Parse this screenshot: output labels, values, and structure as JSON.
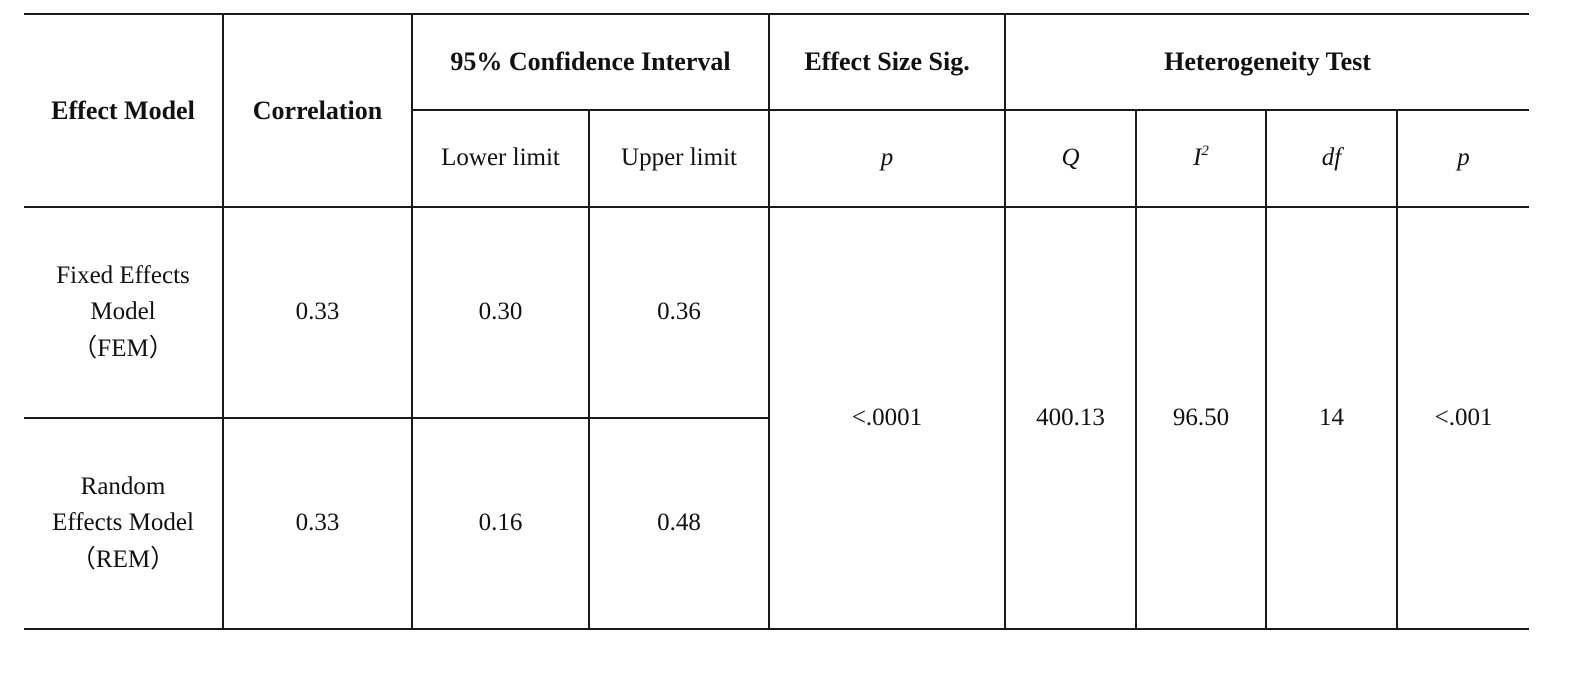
{
  "headers": {
    "effect_model": "Effect Model",
    "correlation": "Correlation",
    "confidence_interval": "95% Confidence Interval",
    "lower_limit": "Lower limit",
    "upper_limit": "Upper limit",
    "effect_size_sig": "Effect Size Sig.",
    "p_effect": "p",
    "heterogeneity_test": "Heterogeneity Test",
    "q": "Q",
    "i": "I",
    "i_sup": "2",
    "df": "df",
    "p_het": "p"
  },
  "rows": [
    {
      "model": "Fixed Effects Model（FEM）",
      "correlation": "0.33",
      "lower": "0.30",
      "upper": "0.36"
    },
    {
      "model": "Random Effects Model（REM）",
      "correlation": "0.33",
      "lower": "0.16",
      "upper": "0.48"
    }
  ],
  "shared": {
    "p_effect": "<.0001",
    "q": "400.13",
    "i2": "96.50",
    "df": "14",
    "p_het": "<.001"
  }
}
